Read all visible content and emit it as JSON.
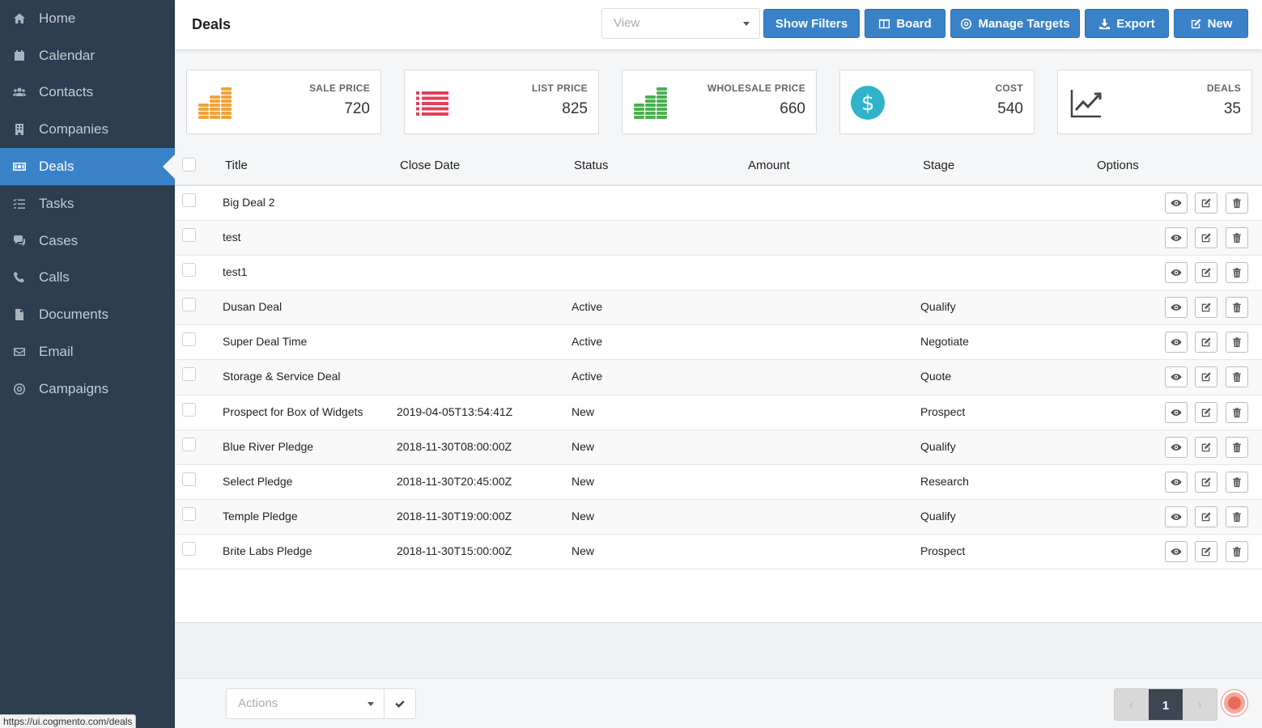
{
  "sidebar": {
    "items": [
      {
        "label": "Home",
        "icon": "home-icon"
      },
      {
        "label": "Calendar",
        "icon": "calendar-icon"
      },
      {
        "label": "Contacts",
        "icon": "users-icon"
      },
      {
        "label": "Companies",
        "icon": "building-icon"
      },
      {
        "label": "Deals",
        "icon": "money-icon",
        "active": true
      },
      {
        "label": "Tasks",
        "icon": "tasks-icon"
      },
      {
        "label": "Cases",
        "icon": "comments-icon"
      },
      {
        "label": "Calls",
        "icon": "phone-icon"
      },
      {
        "label": "Documents",
        "icon": "file-icon"
      },
      {
        "label": "Email",
        "icon": "envelope-icon"
      },
      {
        "label": "Campaigns",
        "icon": "bullseye-icon"
      }
    ]
  },
  "status_url": "https://ui.cogmento.com/deals",
  "header": {
    "title": "Deals",
    "view_placeholder": "View",
    "show_filters": "Show Filters",
    "board": "Board",
    "manage_targets": "Manage Targets",
    "export": "Export",
    "new": "New"
  },
  "stats": [
    {
      "label": "SALE PRICE",
      "value": "720",
      "icon": "coins-icon",
      "color": "#f2a23a"
    },
    {
      "label": "LIST PRICE",
      "value": "825",
      "icon": "list-icon",
      "color": "#e0405a"
    },
    {
      "label": "WHOLESALE PRICE",
      "value": "660",
      "icon": "coins-icon",
      "color": "#4caf50"
    },
    {
      "label": "COST",
      "value": "540",
      "icon": "dollar-circle-icon",
      "color": "#2fb3c9"
    },
    {
      "label": "DEALS",
      "value": "35",
      "icon": "line-chart-icon",
      "color": "#444444"
    }
  ],
  "table": {
    "columns": [
      "Title",
      "Close Date",
      "Status",
      "Amount",
      "Stage",
      "Options"
    ],
    "rows": [
      {
        "title": "Big Deal 2",
        "close_date": "",
        "status": "",
        "amount": "",
        "stage": ""
      },
      {
        "title": "test",
        "close_date": "",
        "status": "",
        "amount": "",
        "stage": ""
      },
      {
        "title": "test1",
        "close_date": "",
        "status": "",
        "amount": "",
        "stage": ""
      },
      {
        "title": "Dusan Deal",
        "close_date": "",
        "status": "Active",
        "amount": "",
        "stage": "Qualify"
      },
      {
        "title": "Super Deal Time",
        "close_date": "",
        "status": "Active",
        "amount": "",
        "stage": "Negotiate"
      },
      {
        "title": "Storage & Service Deal",
        "close_date": "",
        "status": "Active",
        "amount": "",
        "stage": "Quote"
      },
      {
        "title": "Prospect for Box of Widgets",
        "close_date": "2019-04-05T13:54:41Z",
        "status": "New",
        "amount": "",
        "stage": "Prospect"
      },
      {
        "title": "Blue River Pledge",
        "close_date": "2018-11-30T08:00:00Z",
        "status": "New",
        "amount": "",
        "stage": "Qualify"
      },
      {
        "title": "Select Pledge",
        "close_date": "2018-11-30T20:45:00Z",
        "status": "New",
        "amount": "",
        "stage": "Research"
      },
      {
        "title": "Temple Pledge",
        "close_date": "2018-11-30T19:00:00Z",
        "status": "New",
        "amount": "",
        "stage": "Qualify"
      },
      {
        "title": "Brite Labs Pledge",
        "close_date": "2018-11-30T15:00:00Z",
        "status": "New",
        "amount": "",
        "stage": "Prospect"
      }
    ]
  },
  "footer": {
    "actions_placeholder": "Actions",
    "pagination": {
      "prev": "‹",
      "current": "1",
      "next": "›"
    }
  },
  "colors": {
    "sidebar_bg": "#2c3e50",
    "accent": "#3a82c7"
  }
}
